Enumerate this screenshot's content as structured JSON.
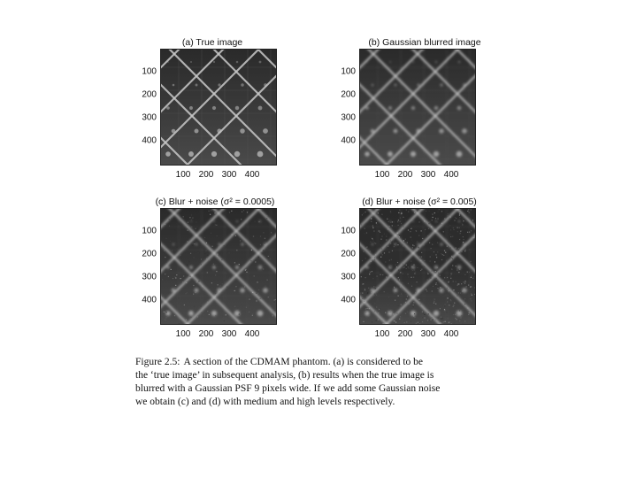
{
  "figure": {
    "panels": [
      {
        "id": "a",
        "title": "(a) True image",
        "noise": 0.0,
        "blur": 0,
        "base": "#3b3b3b"
      },
      {
        "id": "b",
        "title": "(b) Gaussian blurred image",
        "noise": 0.0,
        "blur": 1.2,
        "base": "#3d3d3d"
      },
      {
        "id": "c",
        "title": "(c) Blur + noise (σ² = 0.0005)",
        "noise": 0.25,
        "blur": 1.2,
        "base": "#3a3a3a"
      },
      {
        "id": "d",
        "title": "(d) Blur + noise (σ² = 0.005)",
        "noise": 0.7,
        "blur": 1.2,
        "base": "#2f2f2f"
      }
    ],
    "yticks": [
      "100",
      "200",
      "300",
      "400"
    ],
    "xticks": [
      "100",
      "200",
      "300",
      "400"
    ],
    "axis_max": 500,
    "caption": {
      "label": "Figure 2.5:",
      "lines": [
        "A section of the CDMAM phantom.  (a) is considered to be",
        "the ‘true image’ in subsequent analysis, (b) results when the true image is",
        "blurred with a Gaussian PSF 9 pixels wide. If we add some Gaussian noise",
        "we obtain (c) and (d) with medium and high levels respectively."
      ]
    }
  }
}
